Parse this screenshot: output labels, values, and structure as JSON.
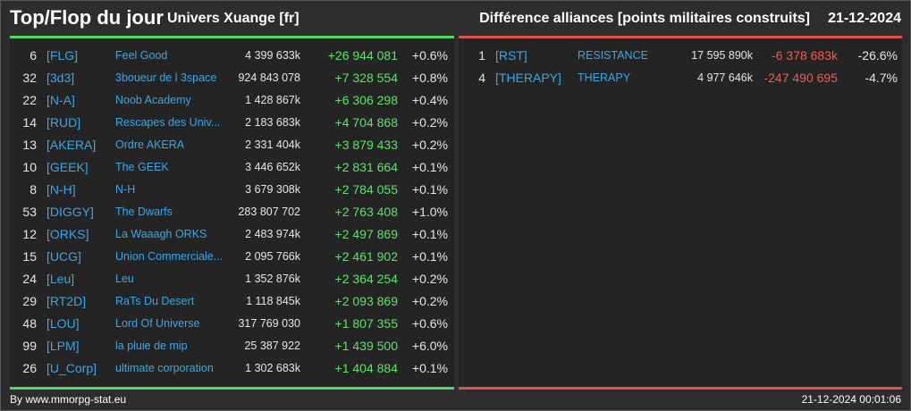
{
  "header": {
    "title": "Top/Flop du jour",
    "universe": "Univers Xuange [fr]",
    "subtitle": "Différence alliances [points militaires construits]",
    "date": "21-12-2024"
  },
  "colors": {
    "positive": "#5be36a",
    "negative": "#f05b55",
    "tag": "#3aa7e6",
    "top_bar": "#4cd964",
    "flop_bar": "#e0524c"
  },
  "top": [
    {
      "rank": "6",
      "tag": "[FLG]",
      "name": "Feel Good",
      "points": "4 399 633k",
      "diff": "+26 944 081",
      "pct": "+0.6%"
    },
    {
      "rank": "32",
      "tag": "[3d3]",
      "name": "3boueur de l 3space",
      "points": "924 843 078",
      "diff": "+7 328 554",
      "pct": "+0.8%"
    },
    {
      "rank": "22",
      "tag": "[N-A]",
      "name": "Noob Academy",
      "points": "1 428 867k",
      "diff": "+6 306 298",
      "pct": "+0.4%"
    },
    {
      "rank": "14",
      "tag": "[RUD]",
      "name": "Rescapes des Univ...",
      "points": "2 183 683k",
      "diff": "+4 704 868",
      "pct": "+0.2%"
    },
    {
      "rank": "13",
      "tag": "[AKERA]",
      "name": "Ordre AKERA",
      "points": "2 331 404k",
      "diff": "+3 879 433",
      "pct": "+0.2%"
    },
    {
      "rank": "10",
      "tag": "[GEEK]",
      "name": "The GEEK",
      "points": "3 446 652k",
      "diff": "+2 831 664",
      "pct": "+0.1%"
    },
    {
      "rank": "8",
      "tag": "[N-H]",
      "name": "N-H",
      "points": "3 679 308k",
      "diff": "+2 784 055",
      "pct": "+0.1%"
    },
    {
      "rank": "53",
      "tag": "[DIGGY]",
      "name": "The Dwarfs",
      "points": "283 807 702",
      "diff": "+2 763 408",
      "pct": "+1.0%"
    },
    {
      "rank": "12",
      "tag": "[ORKS]",
      "name": "La Waaagh ORKS",
      "points": "2 483 974k",
      "diff": "+2 497 869",
      "pct": "+0.1%"
    },
    {
      "rank": "15",
      "tag": "[UCG]",
      "name": "Union Commerciale...",
      "points": "2 095 766k",
      "diff": "+2 461 902",
      "pct": "+0.1%"
    },
    {
      "rank": "24",
      "tag": "[Leu]",
      "name": "Leu",
      "points": "1 352 876k",
      "diff": "+2 364 254",
      "pct": "+0.2%"
    },
    {
      "rank": "29",
      "tag": "[RT2D]",
      "name": "RaTs Du Desert",
      "points": "1 118 845k",
      "diff": "+2 093 869",
      "pct": "+0.2%"
    },
    {
      "rank": "48",
      "tag": "[LOU]",
      "name": "Lord Of Universe",
      "points": "317 769 030",
      "diff": "+1 807 355",
      "pct": "+0.6%"
    },
    {
      "rank": "99",
      "tag": "[LPM]",
      "name": "la pluie de mip",
      "points": "25 387 922",
      "diff": "+1 439 500",
      "pct": "+6.0%"
    },
    {
      "rank": "26",
      "tag": "[U_Corp]",
      "name": "ultimate corporation",
      "points": "1 302 683k",
      "diff": "+1 404 884",
      "pct": "+0.1%"
    }
  ],
  "flop": [
    {
      "rank": "1",
      "tag": "[RST]",
      "name": "RESISTANCE",
      "points": "17 595 890k",
      "diff": "-6 378 683k",
      "pct": "-26.6%"
    },
    {
      "rank": "4",
      "tag": "[THERAPY]",
      "name": "THERAPY",
      "points": "4 977 646k",
      "diff": "-247 490 695",
      "pct": "-4.7%"
    }
  ],
  "footer": {
    "source": "By www.mmorpg-stat.eu",
    "timestamp": "21-12-2024 00:01:06"
  }
}
